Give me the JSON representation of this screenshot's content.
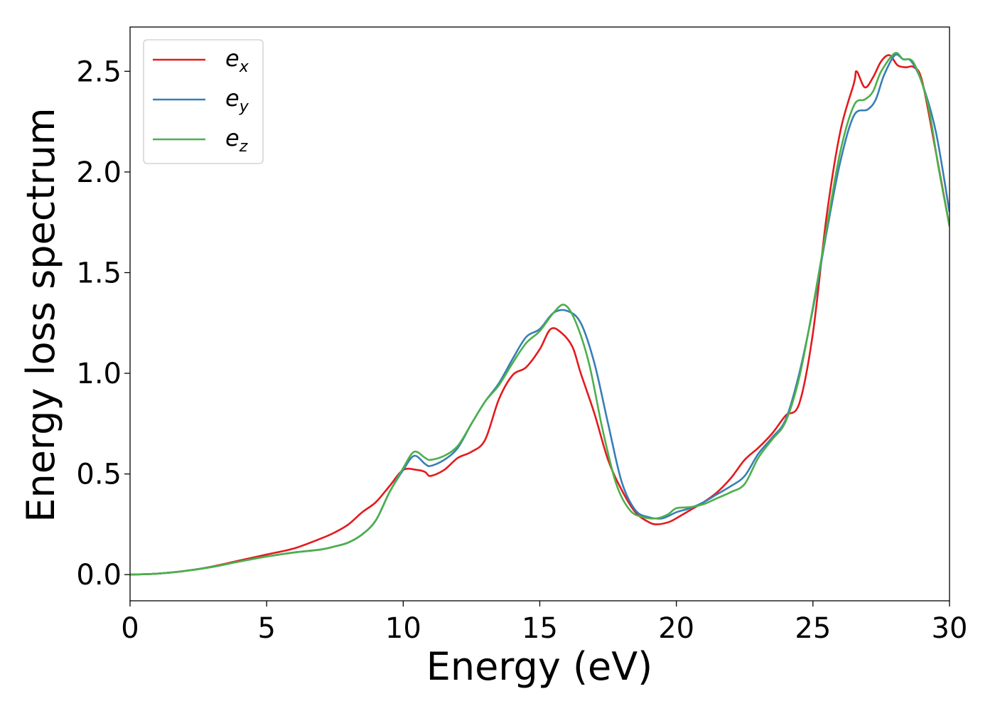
{
  "chart_data": {
    "type": "line",
    "title": "",
    "xlabel": "Energy (eV)",
    "ylabel": "Energy loss spectrum",
    "xlim": [
      0,
      30
    ],
    "ylim": [
      -0.13,
      2.72
    ],
    "xticks": [
      0,
      5,
      10,
      15,
      20,
      25,
      30
    ],
    "xtick_labels": [
      "0",
      "5",
      "10",
      "15",
      "20",
      "25",
      "30"
    ],
    "yticks": [
      0.0,
      0.5,
      1.0,
      1.5,
      2.0,
      2.5
    ],
    "ytick_labels": [
      "0.0",
      "0.5",
      "1.0",
      "1.5",
      "2.0",
      "2.5"
    ],
    "grid": false,
    "legend_position": "top-left",
    "series": [
      {
        "name": "e_x",
        "label_main": "e",
        "label_sub": "x",
        "color": "#e41a1c",
        "x": [
          0,
          1,
          2,
          3,
          4,
          5,
          6,
          7,
          7.5,
          8,
          8.5,
          9,
          9.5,
          10,
          10.5,
          10.8,
          11,
          11.5,
          12,
          12.5,
          13,
          13.5,
          14,
          14.5,
          15,
          15.4,
          15.8,
          16.2,
          16.5,
          17,
          17.5,
          18,
          18.5,
          19,
          19.3,
          19.7,
          20,
          20.5,
          21,
          21.5,
          22,
          22.5,
          23,
          23.5,
          24,
          24.5,
          25,
          25.5,
          26,
          26.5,
          26.6,
          26.9,
          27.2,
          27.5,
          27.8,
          28.1,
          28.4,
          28.7,
          29,
          29.5,
          30
        ],
        "y": [
          0,
          0.005,
          0.018,
          0.04,
          0.07,
          0.1,
          0.13,
          0.18,
          0.21,
          0.25,
          0.31,
          0.36,
          0.44,
          0.52,
          0.52,
          0.51,
          0.49,
          0.52,
          0.58,
          0.61,
          0.67,
          0.87,
          0.99,
          1.03,
          1.12,
          1.22,
          1.2,
          1.13,
          1.0,
          0.8,
          0.57,
          0.42,
          0.31,
          0.26,
          0.25,
          0.26,
          0.28,
          0.32,
          0.36,
          0.41,
          0.48,
          0.57,
          0.63,
          0.7,
          0.79,
          0.85,
          1.2,
          1.78,
          2.2,
          2.44,
          2.5,
          2.42,
          2.47,
          2.55,
          2.58,
          2.53,
          2.52,
          2.52,
          2.45,
          2.1,
          1.73
        ]
      },
      {
        "name": "e_y",
        "label_main": "e",
        "label_sub": "y",
        "color": "#377eb8",
        "x": [
          0,
          1,
          2,
          3,
          4,
          5,
          6,
          7,
          7.5,
          8,
          8.5,
          9,
          9.5,
          10,
          10.4,
          10.8,
          11,
          11.5,
          12,
          12.5,
          13,
          13.5,
          14,
          14.5,
          15,
          15.5,
          16,
          16.5,
          17,
          17.5,
          18,
          18.5,
          19,
          19.5,
          20,
          20.5,
          21,
          21.5,
          22,
          22.5,
          23,
          23.5,
          24,
          24.5,
          25,
          25.5,
          26,
          26.5,
          27,
          27.3,
          27.6,
          28,
          28.3,
          28.6,
          29,
          29.5,
          30
        ],
        "y": [
          0,
          0.005,
          0.018,
          0.038,
          0.065,
          0.09,
          0.11,
          0.125,
          0.14,
          0.16,
          0.2,
          0.27,
          0.41,
          0.52,
          0.59,
          0.55,
          0.54,
          0.57,
          0.63,
          0.75,
          0.86,
          0.95,
          1.07,
          1.18,
          1.22,
          1.3,
          1.31,
          1.25,
          1.05,
          0.75,
          0.46,
          0.32,
          0.285,
          0.28,
          0.31,
          0.33,
          0.36,
          0.4,
          0.44,
          0.49,
          0.6,
          0.68,
          0.77,
          1.0,
          1.32,
          1.7,
          2.05,
          2.28,
          2.31,
          2.36,
          2.48,
          2.58,
          2.56,
          2.55,
          2.44,
          2.2,
          1.8
        ]
      },
      {
        "name": "e_z",
        "label_main": "e",
        "label_sub": "z",
        "color": "#4daf4a",
        "x": [
          0,
          1,
          2,
          3,
          4,
          5,
          6,
          7,
          7.5,
          8,
          8.5,
          9,
          9.5,
          10,
          10.4,
          10.8,
          11,
          11.5,
          12,
          12.5,
          13,
          13.5,
          14,
          14.5,
          15,
          15.5,
          15.9,
          16.3,
          16.8,
          17.3,
          17.8,
          18.3,
          18.8,
          19.3,
          19.7,
          20,
          20.5,
          21,
          21.5,
          22,
          22.5,
          23,
          23.5,
          24,
          24.5,
          25,
          25.5,
          26,
          26.5,
          26.9,
          27.2,
          27.5,
          28,
          28.3,
          28.7,
          29.2,
          29.6,
          30
        ],
        "y": [
          0,
          0.005,
          0.018,
          0.038,
          0.065,
          0.09,
          0.11,
          0.125,
          0.14,
          0.16,
          0.2,
          0.27,
          0.41,
          0.53,
          0.61,
          0.58,
          0.57,
          0.59,
          0.64,
          0.75,
          0.86,
          0.94,
          1.05,
          1.15,
          1.21,
          1.3,
          1.34,
          1.26,
          1.05,
          0.72,
          0.45,
          0.32,
          0.285,
          0.28,
          0.3,
          0.33,
          0.335,
          0.35,
          0.38,
          0.41,
          0.45,
          0.58,
          0.67,
          0.76,
          0.98,
          1.33,
          1.72,
          2.1,
          2.33,
          2.36,
          2.4,
          2.5,
          2.59,
          2.56,
          2.54,
          2.34,
          2.02,
          1.73
        ]
      }
    ]
  }
}
